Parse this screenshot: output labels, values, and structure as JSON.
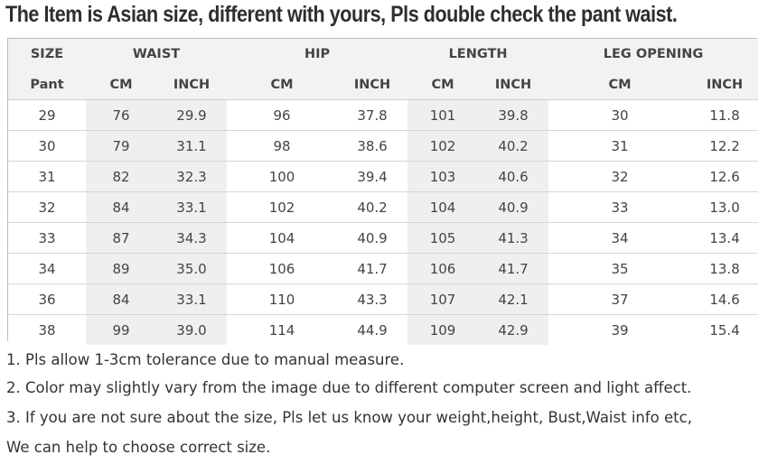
{
  "title": "The Item is Asian size, different with yours, Pls double check the pant waist.",
  "table": {
    "group_headers": [
      "SIZE",
      "WAIST",
      "HIP",
      "LENGTH",
      "LEG OPENING"
    ],
    "sub_headers": [
      "Pant",
      "CM",
      "INCH",
      "CM",
      "INCH",
      "CM",
      "INCH",
      "CM",
      "INCH"
    ],
    "rows": [
      [
        "29",
        "76",
        "29.9",
        "96",
        "37.8",
        "101",
        "39.8",
        "30",
        "11.8"
      ],
      [
        "30",
        "79",
        "31.1",
        "98",
        "38.6",
        "102",
        "40.2",
        "31",
        "12.2"
      ],
      [
        "31",
        "82",
        "32.3",
        "100",
        "39.4",
        "103",
        "40.6",
        "32",
        "12.6"
      ],
      [
        "32",
        "84",
        "33.1",
        "102",
        "40.2",
        "104",
        "40.9",
        "33",
        "13.0"
      ],
      [
        "33",
        "87",
        "34.3",
        "104",
        "40.9",
        "105",
        "41.3",
        "34",
        "13.4"
      ],
      [
        "34",
        "89",
        "35.0",
        "106",
        "41.7",
        "106",
        "41.7",
        "35",
        "13.8"
      ],
      [
        "36",
        "84",
        "33.1",
        "110",
        "43.3",
        "107",
        "42.1",
        "37",
        "14.6"
      ],
      [
        "38",
        "99",
        "39.0",
        "114",
        "44.9",
        "109",
        "42.9",
        "39",
        "15.4"
      ]
    ]
  },
  "notes": [
    "1. Pls allow 1-3cm tolerance due to manual measure.",
    "2. Color may slightly vary from the image due to different computer screen and light affect.",
    "3. If you are not sure about the size, Pls let us know your weight,height, Bust,Waist info etc,",
    "We can help to choose correct size."
  ]
}
